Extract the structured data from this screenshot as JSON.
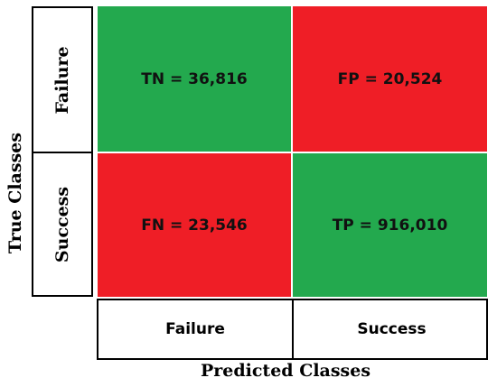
{
  "axes": {
    "y_title": "True Classes",
    "x_title": "Predicted Classes"
  },
  "row_labels": [
    "Failure",
    "Success"
  ],
  "col_labels": [
    "Failure",
    "Success"
  ],
  "colors": {
    "correct": "#23a94e",
    "incorrect": "#ef1e26"
  },
  "cells": [
    {
      "text": "TN = 36,816",
      "outcome": "correct"
    },
    {
      "text": "FP = 20,524",
      "outcome": "incorrect"
    },
    {
      "text": "FN = 23,546",
      "outcome": "incorrect"
    },
    {
      "text": "TP = 916,010",
      "outcome": "correct"
    }
  ]
}
